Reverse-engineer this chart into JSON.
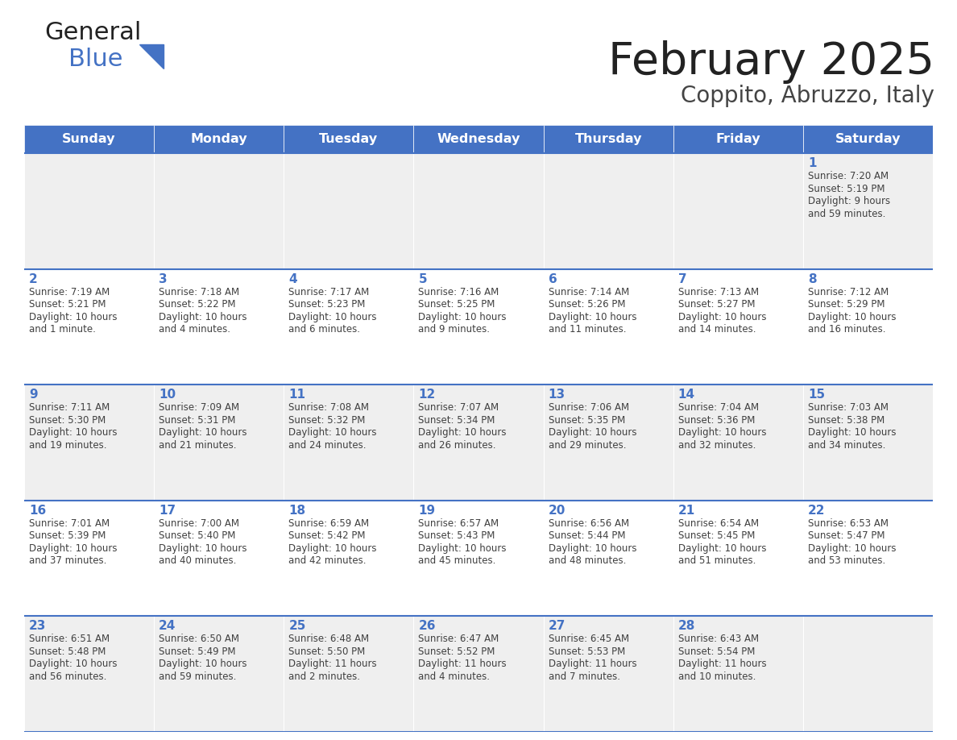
{
  "title": "February 2025",
  "subtitle": "Coppito, Abruzzo, Italy",
  "days_of_week": [
    "Sunday",
    "Monday",
    "Tuesday",
    "Wednesday",
    "Thursday",
    "Friday",
    "Saturday"
  ],
  "header_bg": "#4472C4",
  "header_text": "#FFFFFF",
  "cell_bg_even": "#EFEFEF",
  "cell_bg_odd": "#FFFFFF",
  "divider_color": "#4472C4",
  "day_num_color": "#4472C4",
  "text_color": "#404040",
  "logo_general_color": "#222222",
  "logo_blue_color": "#4472C4",
  "logo_triangle_color": "#4472C4",
  "title_color": "#222222",
  "subtitle_color": "#444444",
  "calendar": [
    [
      null,
      null,
      null,
      null,
      null,
      null,
      {
        "day": "1",
        "sunrise": "Sunrise: 7:20 AM",
        "sunset": "Sunset: 5:19 PM",
        "daylight": "Daylight: 9 hours",
        "daylight2": "and 59 minutes."
      }
    ],
    [
      {
        "day": "2",
        "sunrise": "Sunrise: 7:19 AM",
        "sunset": "Sunset: 5:21 PM",
        "daylight": "Daylight: 10 hours",
        "daylight2": "and 1 minute."
      },
      {
        "day": "3",
        "sunrise": "Sunrise: 7:18 AM",
        "sunset": "Sunset: 5:22 PM",
        "daylight": "Daylight: 10 hours",
        "daylight2": "and 4 minutes."
      },
      {
        "day": "4",
        "sunrise": "Sunrise: 7:17 AM",
        "sunset": "Sunset: 5:23 PM",
        "daylight": "Daylight: 10 hours",
        "daylight2": "and 6 minutes."
      },
      {
        "day": "5",
        "sunrise": "Sunrise: 7:16 AM",
        "sunset": "Sunset: 5:25 PM",
        "daylight": "Daylight: 10 hours",
        "daylight2": "and 9 minutes."
      },
      {
        "day": "6",
        "sunrise": "Sunrise: 7:14 AM",
        "sunset": "Sunset: 5:26 PM",
        "daylight": "Daylight: 10 hours",
        "daylight2": "and 11 minutes."
      },
      {
        "day": "7",
        "sunrise": "Sunrise: 7:13 AM",
        "sunset": "Sunset: 5:27 PM",
        "daylight": "Daylight: 10 hours",
        "daylight2": "and 14 minutes."
      },
      {
        "day": "8",
        "sunrise": "Sunrise: 7:12 AM",
        "sunset": "Sunset: 5:29 PM",
        "daylight": "Daylight: 10 hours",
        "daylight2": "and 16 minutes."
      }
    ],
    [
      {
        "day": "9",
        "sunrise": "Sunrise: 7:11 AM",
        "sunset": "Sunset: 5:30 PM",
        "daylight": "Daylight: 10 hours",
        "daylight2": "and 19 minutes."
      },
      {
        "day": "10",
        "sunrise": "Sunrise: 7:09 AM",
        "sunset": "Sunset: 5:31 PM",
        "daylight": "Daylight: 10 hours",
        "daylight2": "and 21 minutes."
      },
      {
        "day": "11",
        "sunrise": "Sunrise: 7:08 AM",
        "sunset": "Sunset: 5:32 PM",
        "daylight": "Daylight: 10 hours",
        "daylight2": "and 24 minutes."
      },
      {
        "day": "12",
        "sunrise": "Sunrise: 7:07 AM",
        "sunset": "Sunset: 5:34 PM",
        "daylight": "Daylight: 10 hours",
        "daylight2": "and 26 minutes."
      },
      {
        "day": "13",
        "sunrise": "Sunrise: 7:06 AM",
        "sunset": "Sunset: 5:35 PM",
        "daylight": "Daylight: 10 hours",
        "daylight2": "and 29 minutes."
      },
      {
        "day": "14",
        "sunrise": "Sunrise: 7:04 AM",
        "sunset": "Sunset: 5:36 PM",
        "daylight": "Daylight: 10 hours",
        "daylight2": "and 32 minutes."
      },
      {
        "day": "15",
        "sunrise": "Sunrise: 7:03 AM",
        "sunset": "Sunset: 5:38 PM",
        "daylight": "Daylight: 10 hours",
        "daylight2": "and 34 minutes."
      }
    ],
    [
      {
        "day": "16",
        "sunrise": "Sunrise: 7:01 AM",
        "sunset": "Sunset: 5:39 PM",
        "daylight": "Daylight: 10 hours",
        "daylight2": "and 37 minutes."
      },
      {
        "day": "17",
        "sunrise": "Sunrise: 7:00 AM",
        "sunset": "Sunset: 5:40 PM",
        "daylight": "Daylight: 10 hours",
        "daylight2": "and 40 minutes."
      },
      {
        "day": "18",
        "sunrise": "Sunrise: 6:59 AM",
        "sunset": "Sunset: 5:42 PM",
        "daylight": "Daylight: 10 hours",
        "daylight2": "and 42 minutes."
      },
      {
        "day": "19",
        "sunrise": "Sunrise: 6:57 AM",
        "sunset": "Sunset: 5:43 PM",
        "daylight": "Daylight: 10 hours",
        "daylight2": "and 45 minutes."
      },
      {
        "day": "20",
        "sunrise": "Sunrise: 6:56 AM",
        "sunset": "Sunset: 5:44 PM",
        "daylight": "Daylight: 10 hours",
        "daylight2": "and 48 minutes."
      },
      {
        "day": "21",
        "sunrise": "Sunrise: 6:54 AM",
        "sunset": "Sunset: 5:45 PM",
        "daylight": "Daylight: 10 hours",
        "daylight2": "and 51 minutes."
      },
      {
        "day": "22",
        "sunrise": "Sunrise: 6:53 AM",
        "sunset": "Sunset: 5:47 PM",
        "daylight": "Daylight: 10 hours",
        "daylight2": "and 53 minutes."
      }
    ],
    [
      {
        "day": "23",
        "sunrise": "Sunrise: 6:51 AM",
        "sunset": "Sunset: 5:48 PM",
        "daylight": "Daylight: 10 hours",
        "daylight2": "and 56 minutes."
      },
      {
        "day": "24",
        "sunrise": "Sunrise: 6:50 AM",
        "sunset": "Sunset: 5:49 PM",
        "daylight": "Daylight: 10 hours",
        "daylight2": "and 59 minutes."
      },
      {
        "day": "25",
        "sunrise": "Sunrise: 6:48 AM",
        "sunset": "Sunset: 5:50 PM",
        "daylight": "Daylight: 11 hours",
        "daylight2": "and 2 minutes."
      },
      {
        "day": "26",
        "sunrise": "Sunrise: 6:47 AM",
        "sunset": "Sunset: 5:52 PM",
        "daylight": "Daylight: 11 hours",
        "daylight2": "and 4 minutes."
      },
      {
        "day": "27",
        "sunrise": "Sunrise: 6:45 AM",
        "sunset": "Sunset: 5:53 PM",
        "daylight": "Daylight: 11 hours",
        "daylight2": "and 7 minutes."
      },
      {
        "day": "28",
        "sunrise": "Sunrise: 6:43 AM",
        "sunset": "Sunset: 5:54 PM",
        "daylight": "Daylight: 11 hours",
        "daylight2": "and 10 minutes."
      },
      null
    ]
  ]
}
